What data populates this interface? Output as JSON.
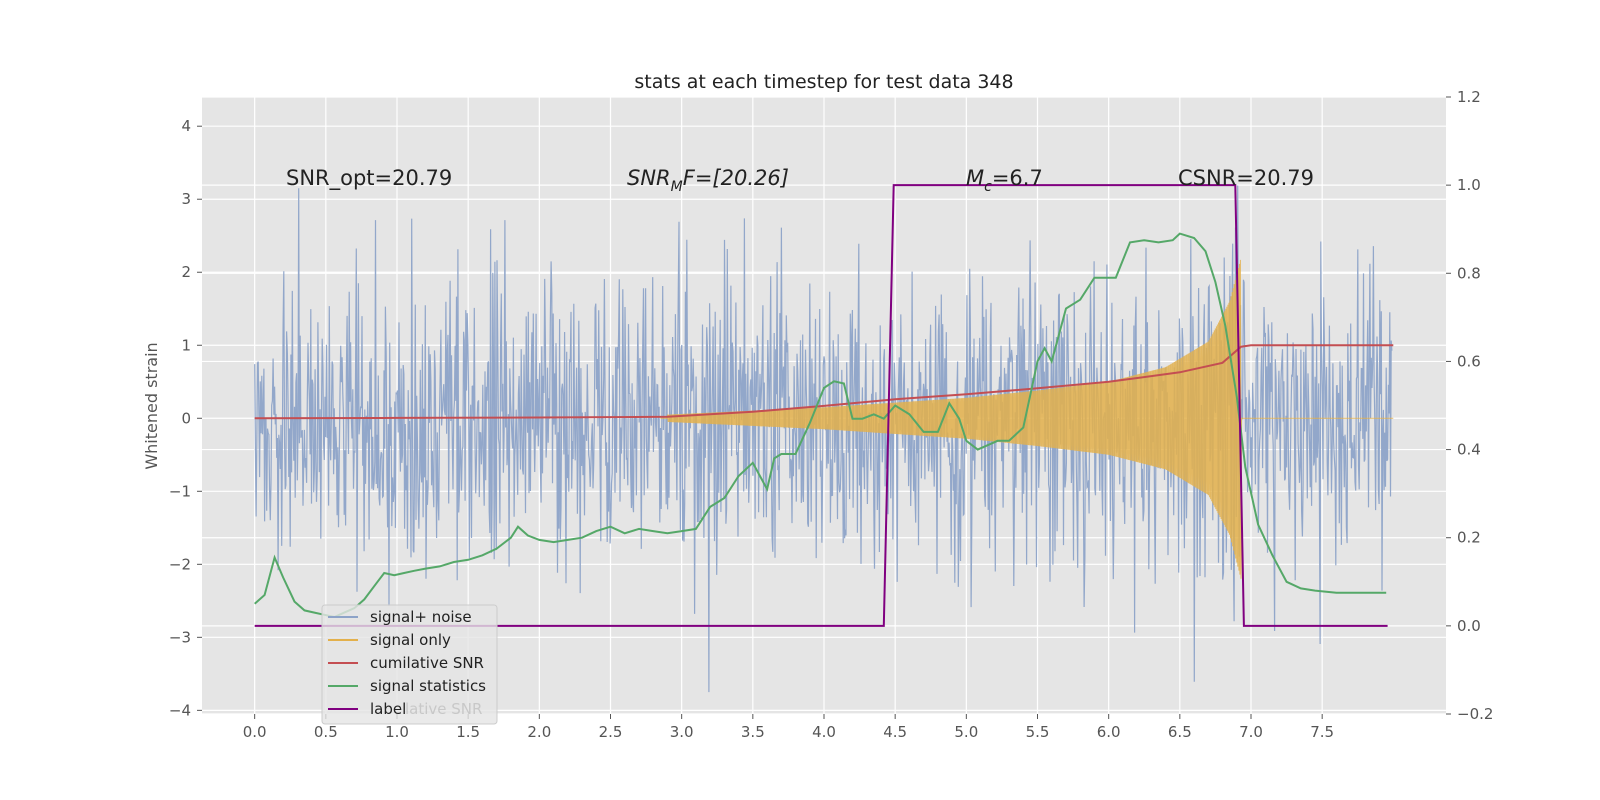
{
  "chart_data": {
    "type": "line",
    "title": "stats at each timestep for test data 348",
    "xlabel": "",
    "ylabel": "Whitened strain",
    "xlim": [
      -0.37,
      8.37
    ],
    "ylim": [
      -4.05,
      4.4
    ],
    "y2lim": [
      -0.2,
      1.2
    ],
    "xticks": [
      "0.0",
      "0.5",
      "1.0",
      "1.5",
      "2.0",
      "2.5",
      "3.0",
      "3.5",
      "4.0",
      "4.5",
      "5.0",
      "5.5",
      "6.0",
      "6.5",
      "7.0",
      "7.5"
    ],
    "yticks": [
      "4",
      "3",
      "2",
      "1",
      "0",
      "−1",
      "−2",
      "−3",
      "−4"
    ],
    "y2ticks": [
      "1.2",
      "1.0",
      "0.8",
      "0.6",
      "0.4",
      "0.2",
      "0.0",
      "−0.2"
    ],
    "annotations": {
      "snr_opt": "SNR_opt=20.79",
      "snr_mf_prefix": "SNR",
      "snr_mf_sub": "M",
      "snr_mf_suffix": "F=[20.26]",
      "mc_prefix": "M",
      "mc_sub": "c",
      "mc_suffix": "=6.7",
      "csnr": "CSNR=20.79"
    },
    "legend": {
      "position": "lower-left",
      "entries": [
        "signal+ noise",
        "signal only",
        "cumilative SNR",
        "signal statistics",
        "label"
      ],
      "hidden_text": "lative SNR"
    },
    "series": [
      {
        "name": "signal+ noise",
        "axis": "left",
        "description": "whitened noisy strain, approx Gaussian with sigma ~1, sampled 0.0–7.99",
        "x_range": [
          0.0,
          7.99
        ],
        "color": "#8da3c8"
      },
      {
        "name": "signal only",
        "axis": "left",
        "description": "chirp signal growing in amplitude until merger at ~6.93 then zero",
        "envelope": {
          "x": [
            2.9,
            4.0,
            5.0,
            5.5,
            6.0,
            6.4,
            6.7,
            6.85,
            6.93
          ],
          "amp": [
            0.05,
            0.15,
            0.28,
            0.38,
            0.5,
            0.7,
            1.05,
            1.6,
            2.2
          ]
        },
        "color": "#e3b04b"
      },
      {
        "name": "cumilative SNR",
        "axis": "left",
        "x": [
          0.0,
          1.0,
          2.0,
          2.9,
          3.5,
          4.0,
          4.5,
          5.0,
          5.5,
          6.0,
          6.5,
          6.8,
          6.93,
          7.0,
          8.0
        ],
        "values": [
          0.0,
          0.005,
          0.01,
          0.02,
          0.09,
          0.17,
          0.26,
          0.33,
          0.41,
          0.5,
          0.63,
          0.76,
          0.98,
          1.0,
          1.0
        ],
        "color": "#c44e52"
      },
      {
        "name": "signal statistics",
        "axis": "right",
        "x": [
          0.0,
          0.07,
          0.14,
          0.2,
          0.28,
          0.35,
          0.42,
          0.49,
          0.56,
          0.63,
          0.7,
          0.77,
          0.84,
          0.91,
          0.98,
          1.05,
          1.12,
          1.2,
          1.3,
          1.4,
          1.5,
          1.6,
          1.7,
          1.8,
          1.85,
          1.92,
          2.0,
          2.1,
          2.2,
          2.3,
          2.4,
          2.5,
          2.6,
          2.7,
          2.8,
          2.9,
          3.0,
          3.1,
          3.2,
          3.3,
          3.4,
          3.5,
          3.6,
          3.65,
          3.7,
          3.8,
          3.9,
          4.0,
          4.07,
          4.14,
          4.2,
          4.27,
          4.35,
          4.42,
          4.5,
          4.6,
          4.7,
          4.8,
          4.88,
          4.95,
          5.0,
          5.08,
          5.15,
          5.22,
          5.3,
          5.4,
          5.5,
          5.55,
          5.6,
          5.7,
          5.8,
          5.9,
          5.98,
          6.05,
          6.15,
          6.25,
          6.35,
          6.45,
          6.5,
          6.6,
          6.68,
          6.75,
          6.82,
          6.9,
          6.96,
          7.05,
          7.15,
          7.25,
          7.35,
          7.45,
          7.6,
          7.8,
          7.95
        ],
        "values": [
          0.05,
          0.07,
          0.155,
          0.11,
          0.055,
          0.035,
          0.03,
          0.025,
          0.02,
          0.03,
          0.04,
          0.06,
          0.09,
          0.12,
          0.115,
          0.12,
          0.125,
          0.13,
          0.135,
          0.145,
          0.15,
          0.16,
          0.175,
          0.2,
          0.225,
          0.205,
          0.195,
          0.19,
          0.195,
          0.2,
          0.215,
          0.225,
          0.21,
          0.22,
          0.215,
          0.21,
          0.215,
          0.22,
          0.27,
          0.29,
          0.34,
          0.37,
          0.31,
          0.38,
          0.39,
          0.39,
          0.46,
          0.54,
          0.555,
          0.55,
          0.47,
          0.47,
          0.48,
          0.47,
          0.5,
          0.48,
          0.44,
          0.44,
          0.505,
          0.47,
          0.42,
          0.4,
          0.41,
          0.42,
          0.42,
          0.45,
          0.6,
          0.63,
          0.6,
          0.72,
          0.74,
          0.79,
          0.79,
          0.79,
          0.87,
          0.875,
          0.87,
          0.875,
          0.89,
          0.88,
          0.85,
          0.78,
          0.68,
          0.52,
          0.36,
          0.23,
          0.16,
          0.1,
          0.085,
          0.08,
          0.075,
          0.075,
          0.075
        ],
        "color": "#55a868"
      },
      {
        "name": "label",
        "axis": "right",
        "x": [
          0.0,
          4.42,
          4.49,
          6.89,
          6.95,
          7.96
        ],
        "values": [
          0.0,
          0.0,
          1.0,
          1.0,
          0.0,
          0.0
        ],
        "color": "#800080"
      }
    ],
    "grid": true,
    "facecolor": "#e5e5e5"
  }
}
